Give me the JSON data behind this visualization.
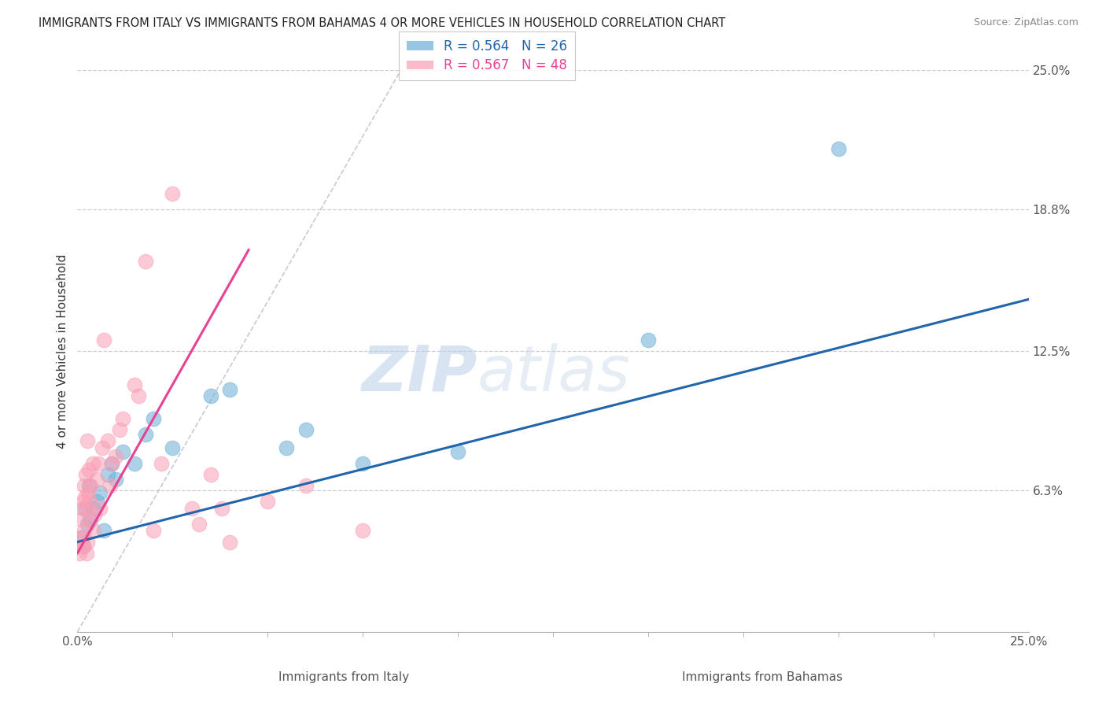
{
  "title": "IMMIGRANTS FROM ITALY VS IMMIGRANTS FROM BAHAMAS 4 OR MORE VEHICLES IN HOUSEHOLD CORRELATION CHART",
  "source": "Source: ZipAtlas.com",
  "xlabel_left": "Immigrants from Italy",
  "xlabel_right": "Immigrants from Bahamas",
  "ylabel": "4 or more Vehicles in Household",
  "xlim": [
    0.0,
    25.0
  ],
  "ylim": [
    0.0,
    25.0
  ],
  "right_ytick_vals": [
    6.3,
    12.5,
    18.8,
    25.0
  ],
  "italy_color": "#6baed6",
  "bahamas_color": "#fa9fb5",
  "italy_line_color": "#2166ac",
  "bahamas_line_color": "#e84393",
  "italy_R": 0.564,
  "italy_N": 26,
  "bahamas_R": 0.567,
  "bahamas_N": 48,
  "watermark_zip": "ZIP",
  "watermark_atlas": "atlas",
  "italy_scatter": [
    [
      0.1,
      4.2
    ],
    [
      0.15,
      3.8
    ],
    [
      0.2,
      5.5
    ],
    [
      0.25,
      4.8
    ],
    [
      0.3,
      6.5
    ],
    [
      0.35,
      5.0
    ],
    [
      0.4,
      5.5
    ],
    [
      0.5,
      5.8
    ],
    [
      0.6,
      6.2
    ],
    [
      0.7,
      4.5
    ],
    [
      0.8,
      7.0
    ],
    [
      0.9,
      7.5
    ],
    [
      1.0,
      6.8
    ],
    [
      1.2,
      8.0
    ],
    [
      1.5,
      7.5
    ],
    [
      1.8,
      8.8
    ],
    [
      2.0,
      9.5
    ],
    [
      2.5,
      8.2
    ],
    [
      3.5,
      10.5
    ],
    [
      4.0,
      10.8
    ],
    [
      5.5,
      8.2
    ],
    [
      6.0,
      9.0
    ],
    [
      7.5,
      7.5
    ],
    [
      10.0,
      8.0
    ],
    [
      20.0,
      21.5
    ],
    [
      15.0,
      13.0
    ]
  ],
  "bahamas_scatter": [
    [
      0.05,
      3.5
    ],
    [
      0.08,
      4.0
    ],
    [
      0.1,
      5.0
    ],
    [
      0.12,
      4.2
    ],
    [
      0.13,
      5.5
    ],
    [
      0.15,
      3.8
    ],
    [
      0.15,
      5.8
    ],
    [
      0.17,
      6.5
    ],
    [
      0.18,
      4.5
    ],
    [
      0.2,
      6.0
    ],
    [
      0.22,
      7.0
    ],
    [
      0.23,
      3.5
    ],
    [
      0.25,
      8.5
    ],
    [
      0.25,
      5.5
    ],
    [
      0.27,
      4.0
    ],
    [
      0.28,
      6.2
    ],
    [
      0.3,
      5.0
    ],
    [
      0.3,
      7.2
    ],
    [
      0.32,
      5.8
    ],
    [
      0.35,
      6.5
    ],
    [
      0.4,
      7.5
    ],
    [
      0.42,
      4.5
    ],
    [
      0.45,
      5.2
    ],
    [
      0.5,
      6.8
    ],
    [
      0.55,
      7.5
    ],
    [
      0.6,
      5.5
    ],
    [
      0.65,
      8.2
    ],
    [
      0.7,
      13.0
    ],
    [
      0.8,
      8.5
    ],
    [
      0.85,
      6.5
    ],
    [
      0.9,
      7.5
    ],
    [
      1.0,
      7.8
    ],
    [
      1.1,
      9.0
    ],
    [
      1.2,
      9.5
    ],
    [
      1.5,
      11.0
    ],
    [
      1.6,
      10.5
    ],
    [
      1.8,
      16.5
    ],
    [
      2.0,
      4.5
    ],
    [
      2.2,
      7.5
    ],
    [
      2.5,
      19.5
    ],
    [
      3.0,
      5.5
    ],
    [
      3.2,
      4.8
    ],
    [
      3.5,
      7.0
    ],
    [
      3.8,
      5.5
    ],
    [
      4.0,
      4.0
    ],
    [
      5.0,
      5.8
    ],
    [
      6.0,
      6.5
    ],
    [
      7.5,
      4.5
    ]
  ],
  "italy_trendline": [
    0.0,
    4.0,
    25.0,
    14.8
  ],
  "bahamas_trendline": [
    0.0,
    3.5,
    4.5,
    17.0
  ],
  "diagonal_line": [
    0.0,
    0.0,
    8.5,
    25.0
  ]
}
